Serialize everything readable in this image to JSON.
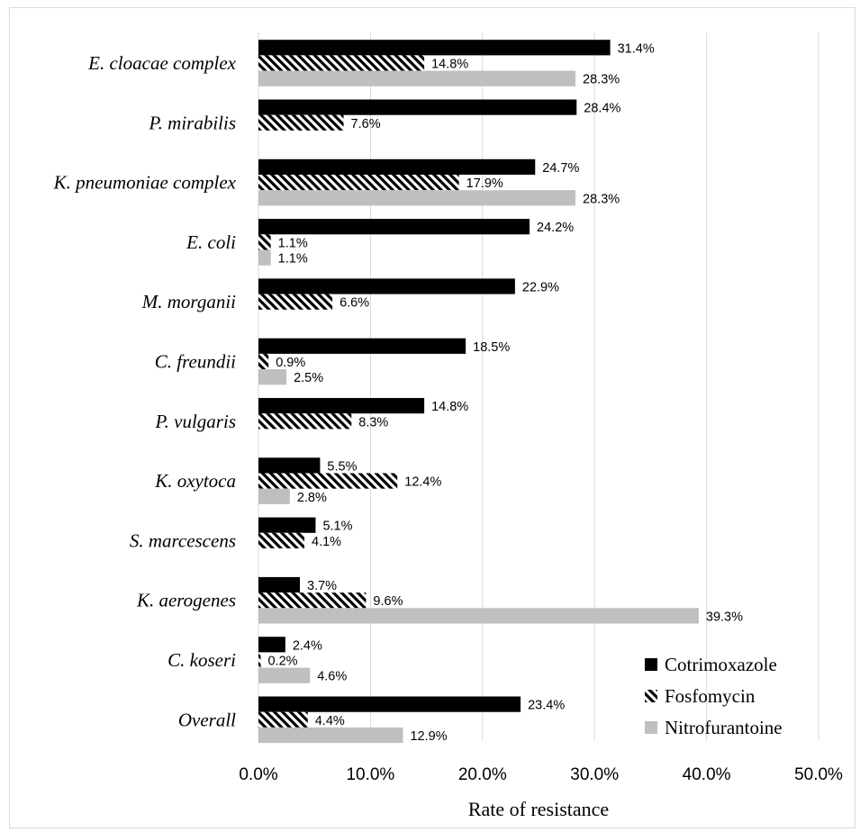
{
  "chart_data": {
    "type": "bar",
    "orientation": "horizontal",
    "categories": [
      "E. cloacae complex",
      "P. mirabilis",
      "K. pneumoniae complex",
      "E. coli",
      "M. morganii",
      "C. freundii",
      "P. vulgaris",
      "K. oxytoca",
      "S. marcescens",
      "K. aerogenes",
      "C. koseri",
      "Overall"
    ],
    "series": [
      {
        "name": "Cotrimoxazole",
        "color": "#000000",
        "pattern": "solid",
        "values": [
          31.4,
          28.4,
          24.7,
          24.2,
          22.9,
          18.5,
          14.8,
          5.5,
          5.1,
          3.7,
          2.4,
          23.4
        ],
        "labels": [
          "31.4%",
          "28.4%",
          "24.7%",
          "24.2%",
          "22.9%",
          "18.5%",
          "14.8%",
          "5.5%",
          "5.1%",
          "3.7%",
          "2.4%",
          "23.4%"
        ]
      },
      {
        "name": "Fosfomycin",
        "color": "#000000",
        "pattern": "diagonal-stripes",
        "values": [
          14.8,
          7.6,
          17.9,
          1.1,
          6.6,
          0.9,
          8.3,
          12.4,
          4.1,
          9.6,
          0.2,
          4.4
        ],
        "labels": [
          "14.8%",
          "7.6%",
          "17.9%",
          "1.1%",
          "6.6%",
          "0.9%",
          "8.3%",
          "12.4%",
          "4.1%",
          "9.6%",
          "0.2%",
          "4.4%"
        ]
      },
      {
        "name": "Nitrofurantoine",
        "color": "#bfbfbf",
        "pattern": "solid",
        "values": [
          28.3,
          null,
          28.3,
          1.1,
          null,
          2.5,
          null,
          2.8,
          null,
          39.3,
          4.6,
          12.9
        ],
        "labels": [
          "28.3%",
          "",
          "28.3%",
          "1.1%",
          "",
          "2.5%",
          "",
          "2.8%",
          "",
          "39.3%",
          "4.6%",
          "12.9%"
        ]
      }
    ],
    "xlabel": "Rate of resistance",
    "xlim": [
      0,
      50
    ],
    "xticks": [
      "0.0%",
      "10.0%",
      "20.0%",
      "30.0%",
      "40.0%",
      "50.0%"
    ],
    "grid": true,
    "legend_position": "bottom-right"
  }
}
